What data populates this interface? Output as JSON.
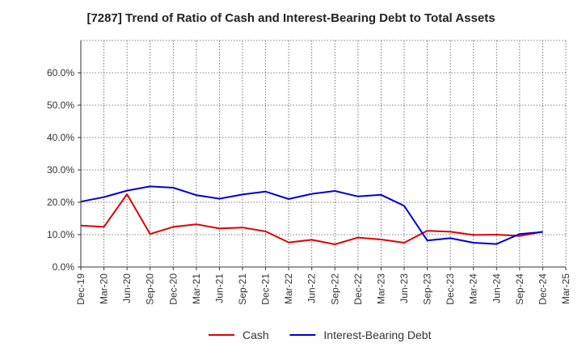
{
  "chart_data": {
    "type": "line",
    "title": "[7287]  Trend of Ratio of Cash and Interest-Bearing Debt to Total Assets",
    "xlabel": "",
    "ylabel": "",
    "x": [
      "Dec-19",
      "Mar-20",
      "Jun-20",
      "Sep-20",
      "Dec-20",
      "Mar-21",
      "Jun-21",
      "Sep-21",
      "Dec-21",
      "Mar-22",
      "Jun-22",
      "Sep-22",
      "Dec-22",
      "Mar-23",
      "Jun-23",
      "Sep-23",
      "Dec-23",
      "Mar-24",
      "Jun-24",
      "Sep-24",
      "Dec-24",
      "Mar-25"
    ],
    "ylim": [
      0,
      70
    ],
    "yticks": [
      0,
      10,
      20,
      30,
      40,
      50,
      60
    ],
    "ytick_labels": [
      "0.0%",
      "10.0%",
      "20.0%",
      "30.0%",
      "40.0%",
      "50.0%",
      "60.0%"
    ],
    "grid": true,
    "legend_position": "bottom",
    "series": [
      {
        "name": "Cash",
        "color": "#e00000",
        "values": [
          12.8,
          12.4,
          22.5,
          10.2,
          12.4,
          13.2,
          11.9,
          12.2,
          11.0,
          7.6,
          8.4,
          7.0,
          9.1,
          8.5,
          7.5,
          11.2,
          10.9,
          9.9,
          10.0,
          9.6,
          10.9,
          null
        ]
      },
      {
        "name": "Interest-Bearing Debt",
        "color": "#0000d0",
        "values": [
          20.2,
          21.6,
          23.6,
          24.9,
          24.5,
          22.2,
          21.1,
          22.4,
          23.3,
          21.0,
          22.6,
          23.5,
          21.8,
          22.3,
          18.9,
          8.2,
          8.9,
          7.5,
          7.1,
          10.2,
          10.8,
          null
        ]
      }
    ]
  }
}
